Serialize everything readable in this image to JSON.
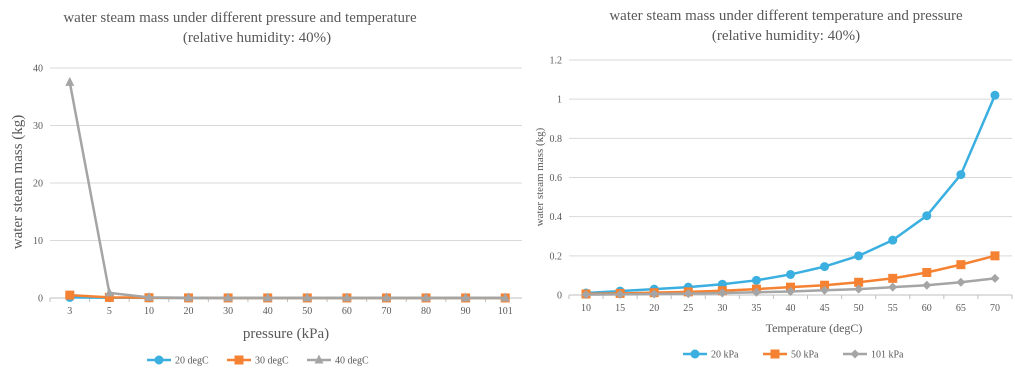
{
  "chart_data": [
    {
      "type": "line",
      "title": "water steam mass under different pressure and temperature",
      "subtitle": "(relative humidity: 40%)",
      "xlabel": "pressure (kPa)",
      "ylabel": "water steam mass (kg)",
      "categories": [
        "3",
        "5",
        "10",
        "20",
        "30",
        "40",
        "50",
        "60",
        "70",
        "80",
        "90",
        "101"
      ],
      "ylim": [
        0,
        40
      ],
      "yticks": [
        "0",
        "10",
        "20",
        "30",
        "40"
      ],
      "grid": true,
      "legend_position": "bottom",
      "series": [
        {
          "name": "20 degC",
          "color": "#3aafe0",
          "marker": "circle",
          "values": [
            0.1,
            0.05,
            0.02,
            0.01,
            0.01,
            0.01,
            0.01,
            0.01,
            0.01,
            0.01,
            0.01,
            0.01
          ]
        },
        {
          "name": "30 degC",
          "color": "#f58233",
          "marker": "square",
          "values": [
            0.5,
            0.1,
            0.05,
            0.02,
            0.01,
            0.01,
            0.01,
            0.01,
            0.01,
            0.01,
            0.01,
            0.01
          ]
        },
        {
          "name": "40 degC",
          "color": "#a5a5a5",
          "marker": "triangle",
          "values": [
            37.5,
            0.9,
            0.1,
            0.05,
            0.03,
            0.02,
            0.02,
            0.02,
            0.02,
            0.02,
            0.02,
            0.02
          ]
        }
      ]
    },
    {
      "type": "line",
      "title": "water steam mass under different temperature and pressure",
      "subtitle": "(relative humidity: 40%)",
      "xlabel": "Temperature (degC)",
      "ylabel": "water steam mass (kg)",
      "categories": [
        "10",
        "15",
        "20",
        "25",
        "30",
        "35",
        "40",
        "45",
        "50",
        "55",
        "60",
        "65",
        "70"
      ],
      "ylim": [
        0,
        1.2
      ],
      "yticks": [
        "0",
        "0.2",
        "0.4",
        "0.6",
        "0.8",
        "1",
        "1.2"
      ],
      "grid": true,
      "legend_position": "bottom",
      "series": [
        {
          "name": "20 kPa",
          "color": "#3aafe0",
          "marker": "circle",
          "values": [
            0.01,
            0.02,
            0.03,
            0.04,
            0.055,
            0.075,
            0.105,
            0.145,
            0.2,
            0.28,
            0.405,
            0.615,
            1.02
          ]
        },
        {
          "name": "50 kPa",
          "color": "#f58233",
          "marker": "square",
          "values": [
            0.005,
            0.008,
            0.012,
            0.016,
            0.022,
            0.03,
            0.04,
            0.05,
            0.065,
            0.085,
            0.115,
            0.155,
            0.2
          ]
        },
        {
          "name": "101 kPa",
          "color": "#a5a5a5",
          "marker": "diamond",
          "values": [
            0.002,
            0.003,
            0.005,
            0.007,
            0.01,
            0.014,
            0.018,
            0.024,
            0.03,
            0.04,
            0.05,
            0.065,
            0.085
          ]
        }
      ]
    }
  ]
}
